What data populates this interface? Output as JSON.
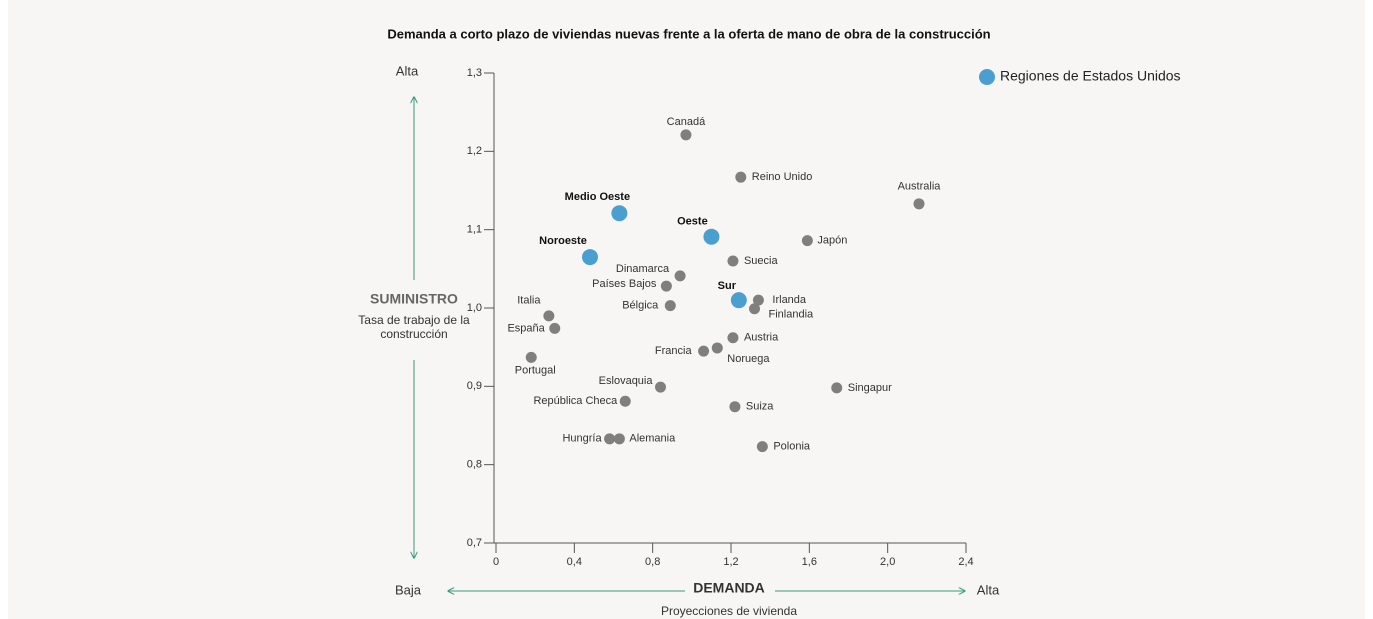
{
  "chart_data": {
    "type": "scatter",
    "title": "Demanda a corto plazo de viviendas nuevas frente a la oferta de mano de obra de la construcción",
    "y_high": "Alta",
    "low": "Baja",
    "x_high": "Alta",
    "y_label": "SUMINISTRO",
    "y_sublabel": "Tasa de trabajo de la construcción",
    "x_label": "DEMANDA",
    "x_sublabel": "Proyecciones de vivienda",
    "xlim": [
      0,
      2.4
    ],
    "ylim": [
      0.7,
      1.3
    ],
    "xticks": [
      0,
      {
        "value": 0.4,
        "label": "0,4"
      },
      {
        "value": 0.8,
        "label": "0,8"
      },
      {
        "value": 1.2,
        "label": "1,2"
      },
      {
        "value": 1.6,
        "label": "1,6"
      },
      {
        "value": 2.0,
        "label": "2,0"
      },
      {
        "value": 2.4,
        "label": "2,4"
      }
    ],
    "yticks": [
      {
        "value": 0.7,
        "label": "0,7"
      },
      {
        "value": 0.8,
        "label": "0,8"
      },
      {
        "value": 0.9,
        "label": "0,9"
      },
      {
        "value": 1.0,
        "label": "1,0"
      },
      {
        "value": 1.1,
        "label": "1,1"
      },
      {
        "value": 1.2,
        "label": "1,2"
      },
      {
        "value": 1.3,
        "label": "1,3"
      }
    ],
    "accent_color": "#3a9a80",
    "series": [
      {
        "color": "#7f7f7f",
        "labels": [
          "Canadá",
          "Reino Unido",
          "Australia",
          "Japón",
          "Suecia",
          "Dinamarca",
          "Países Bajos",
          "Irlanda",
          "Bélgica",
          "Finlandia",
          "Italia",
          "España",
          "Austria",
          "Noruega",
          "Francia",
          "Portugal",
          "Singapur",
          "Eslovaquia",
          "República Checa",
          "Suiza",
          "Hungría",
          "Alemania",
          "Polonia"
        ],
        "x": [
          0.97,
          1.25,
          2.16,
          1.59,
          1.21,
          0.94,
          0.87,
          1.34,
          0.89,
          1.32,
          0.27,
          0.3,
          1.21,
          1.13,
          1.06,
          0.18,
          1.74,
          0.84,
          0.66,
          1.22,
          0.58,
          0.63,
          1.36
        ],
        "y": [
          1.221,
          1.167,
          1.133,
          1.086,
          1.06,
          1.041,
          1.028,
          1.01,
          1.003,
          0.999,
          0.99,
          0.974,
          0.962,
          0.949,
          0.945,
          0.937,
          0.898,
          0.899,
          0.881,
          0.874,
          0.833,
          0.833,
          0.823
        ]
      },
      {
        "name": "Regiones de Estados Unidos",
        "color": "#4a9fd0",
        "labels": [
          "Medio Oeste",
          "Oeste",
          "Noroeste",
          "Sur"
        ],
        "x": [
          0.63,
          1.1,
          0.48,
          1.24
        ],
        "y": [
          1.121,
          1.091,
          1.065,
          1.01
        ]
      }
    ]
  }
}
